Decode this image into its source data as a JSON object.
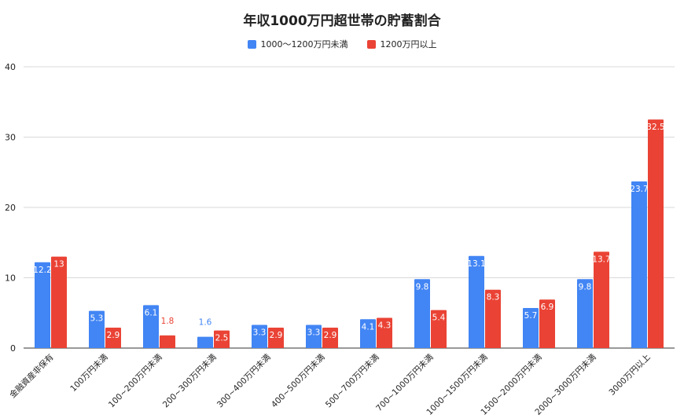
{
  "chart_data": {
    "type": "bar",
    "title": "年収1000万円超世帯の貯蓄割合",
    "categories": [
      "金融資産非保有",
      "100万円未満",
      "100~200万円未満",
      "200~300万円未満",
      "300~400万円未満",
      "400~500万円未満",
      "500~700万円未満",
      "700~1000万円未満",
      "1000~1500万円未満",
      "1500~2000万円未満",
      "2000~3000万円未満",
      "3000万円以上"
    ],
    "series": [
      {
        "name": "1000〜1200万円未満",
        "color": "#4285f4",
        "values": [
          12.2,
          5.3,
          6.1,
          1.6,
          3.3,
          3.3,
          4.1,
          9.8,
          13.1,
          5.7,
          9.8,
          23.7
        ],
        "labels": [
          "12.2",
          "5.3",
          "6.1",
          "1.6",
          "3.3",
          "3.3",
          "4.1",
          "9.8",
          "13.1",
          "5.7",
          "9.8",
          "23.7"
        ]
      },
      {
        "name": "1200万円以上",
        "color": "#ea4335",
        "values": [
          13,
          2.9,
          1.8,
          2.5,
          2.9,
          2.9,
          4.3,
          5.4,
          8.3,
          6.9,
          13.7,
          32.5
        ],
        "labels": [
          "13",
          "2.9",
          "1.8",
          "2.5",
          "2.9",
          "2.9",
          "4.3",
          "5.4",
          "8.3",
          "6.9",
          "13.7",
          "32.5"
        ]
      }
    ],
    "yticks": [
      "0",
      "10",
      "20",
      "30",
      "40"
    ],
    "ylim": [
      0,
      40
    ],
    "grid": true,
    "legend_position": "top-center"
  }
}
